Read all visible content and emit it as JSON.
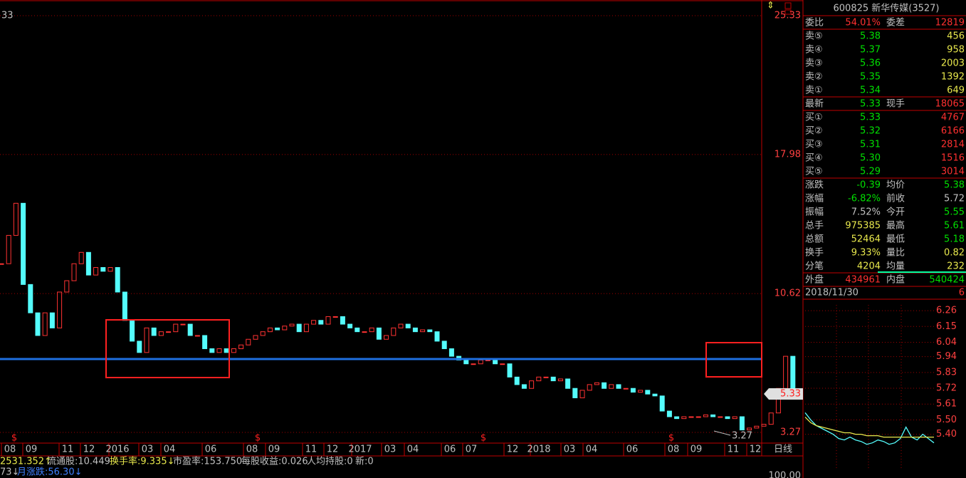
{
  "chart_data": [
    {
      "type": "candlestick",
      "ylim": [
        3.27,
        25.33
      ],
      "yticks": [
        25.33,
        17.98,
        10.62,
        3.27
      ],
      "grid": true,
      "up_color": "#ff3232",
      "down_color": "#54fcfc",
      "grid_color": "#a00000",
      "series": [
        {
          "name": "600825",
          "values": [
            12.2,
            13.7,
            15.4,
            11.1,
            9.6,
            8.4,
            9.6,
            8.8,
            10.7,
            11.3,
            12.2,
            12.8,
            11.6,
            12.0,
            11.8,
            12.0,
            10.7,
            9.2,
            8.1,
            7.5,
            8.8,
            8.4,
            8.6,
            8.6,
            9.0,
            9.0,
            8.4,
            8.4,
            7.7,
            7.5,
            7.7,
            7.5,
            7.7,
            7.9,
            8.2,
            8.4,
            8.6,
            8.8,
            8.7,
            8.9,
            9.0,
            8.6,
            9.0,
            9.2,
            9.0,
            9.4,
            9.4,
            9.0,
            8.8,
            8.6,
            8.6,
            8.8,
            8.2,
            8.4,
            8.8,
            9.0,
            8.8,
            8.6,
            8.7,
            8.6,
            8.1,
            7.7,
            7.3,
            7.1,
            6.9,
            6.9,
            7.1,
            7.1,
            6.9,
            6.9,
            6.2,
            5.8,
            5.6,
            6.0,
            6.2,
            6.2,
            6.0,
            6.1,
            5.6,
            5.1,
            5.5,
            5.8,
            5.9,
            5.6,
            5.8,
            5.6,
            5.6,
            5.4,
            5.5,
            5.3,
            5.2,
            4.4,
            4.1,
            4.0,
            4.1,
            4.1,
            4.1,
            4.2,
            4.1,
            4.1,
            4.0,
            4.1,
            3.4,
            3.5,
            3.6,
            3.7,
            4.3,
            5.6,
            7.3,
            5.3
          ]
        }
      ],
      "xlabels": [
        "08",
        "09",
        "11",
        "12",
        "2016",
        "03",
        "04",
        "06",
        "08",
        "09",
        "11",
        "12",
        "2017",
        "03",
        "04",
        "06",
        "07",
        "12",
        "2018",
        "03",
        "04",
        "06",
        "08",
        "09",
        "11",
        "12"
      ],
      "period": "日线",
      "annotations": {
        "top_left": "33",
        "low": "3.27",
        "last": "5.33"
      },
      "markers": [
        "$",
        "$",
        "$",
        "$"
      ]
    },
    {
      "type": "line",
      "ylim": [
        5.15,
        6.3
      ],
      "grid": true,
      "grid_color": "#a00000",
      "yticks": [
        6.26,
        6.15,
        6.04,
        5.94,
        5.83,
        5.72,
        5.61,
        {
          "value": 5.5,
          "label": "5.50"
        },
        {
          "value": 5.4,
          "label": "5.40"
        }
      ],
      "series": [
        {
          "name": "价格",
          "color": "#54fcfc",
          "values": [
            5.55,
            5.5,
            5.46,
            5.44,
            5.42,
            5.4,
            5.37,
            5.36,
            5.38,
            5.36,
            5.35,
            5.33,
            5.34,
            5.36,
            5.35,
            5.33,
            5.34,
            5.37,
            5.45,
            5.38,
            5.36,
            5.4,
            5.37,
            5.34
          ]
        },
        {
          "name": "均价",
          "color": "#e8e84c",
          "values": [
            5.52,
            5.48,
            5.46,
            5.45,
            5.44,
            5.43,
            5.42,
            5.41,
            5.41,
            5.4,
            5.4,
            5.39,
            5.39,
            5.39,
            5.38,
            5.38,
            5.38,
            5.38,
            5.38,
            5.38,
            5.38,
            5.38,
            5.38,
            5.38
          ]
        }
      ]
    }
  ],
  "quote": {
    "header": "600825 新华传媒(3527)",
    "weibi": [
      "委比",
      "54.01%",
      "委差",
      "12819"
    ],
    "sells": [
      [
        "卖⑤",
        "5.38",
        "456"
      ],
      [
        "卖④",
        "5.37",
        "958"
      ],
      [
        "卖③",
        "5.36",
        "2003"
      ],
      [
        "卖②",
        "5.35",
        "1392"
      ],
      [
        "卖①",
        "5.34",
        "649"
      ]
    ],
    "latest": [
      "最新",
      "5.33",
      "现手",
      "18065"
    ],
    "buys": [
      [
        "买①",
        "5.33",
        "4767"
      ],
      [
        "买②",
        "5.32",
        "6166"
      ],
      [
        "买③",
        "5.31",
        "2814"
      ],
      [
        "买④",
        "5.30",
        "1516"
      ],
      [
        "买⑤",
        "5.29",
        "3014"
      ]
    ],
    "stats": [
      [
        "涨跌",
        "-0.39",
        "均价",
        "5.38"
      ],
      [
        "涨幅",
        "-6.82%",
        "前收",
        "5.72"
      ],
      [
        "振幅",
        "7.52%",
        "今开",
        "5.55"
      ],
      [
        "总手",
        "975385",
        "最高",
        "5.61"
      ],
      [
        "总额",
        "52464",
        "最低",
        "5.18"
      ],
      [
        "换手",
        "9.33%",
        "量比",
        "0.82"
      ],
      [
        "分笔",
        "4204",
        "均量",
        "232"
      ]
    ],
    "outer": [
      "外盘",
      "434961",
      "内盘",
      "540424"
    ],
    "date": "2018/11/30",
    "date_tail": "6"
  },
  "status_bar": {
    "line1": [
      "2531.352↑",
      "流通股:10.449",
      "换手率:9.335↓",
      "市盈率:153.750",
      "每股收益:0.026",
      "人均持股:0",
      "新:0"
    ],
    "line2": [
      "73↓",
      "月涨跌:56.30↓"
    ],
    "corner": "100.00"
  }
}
